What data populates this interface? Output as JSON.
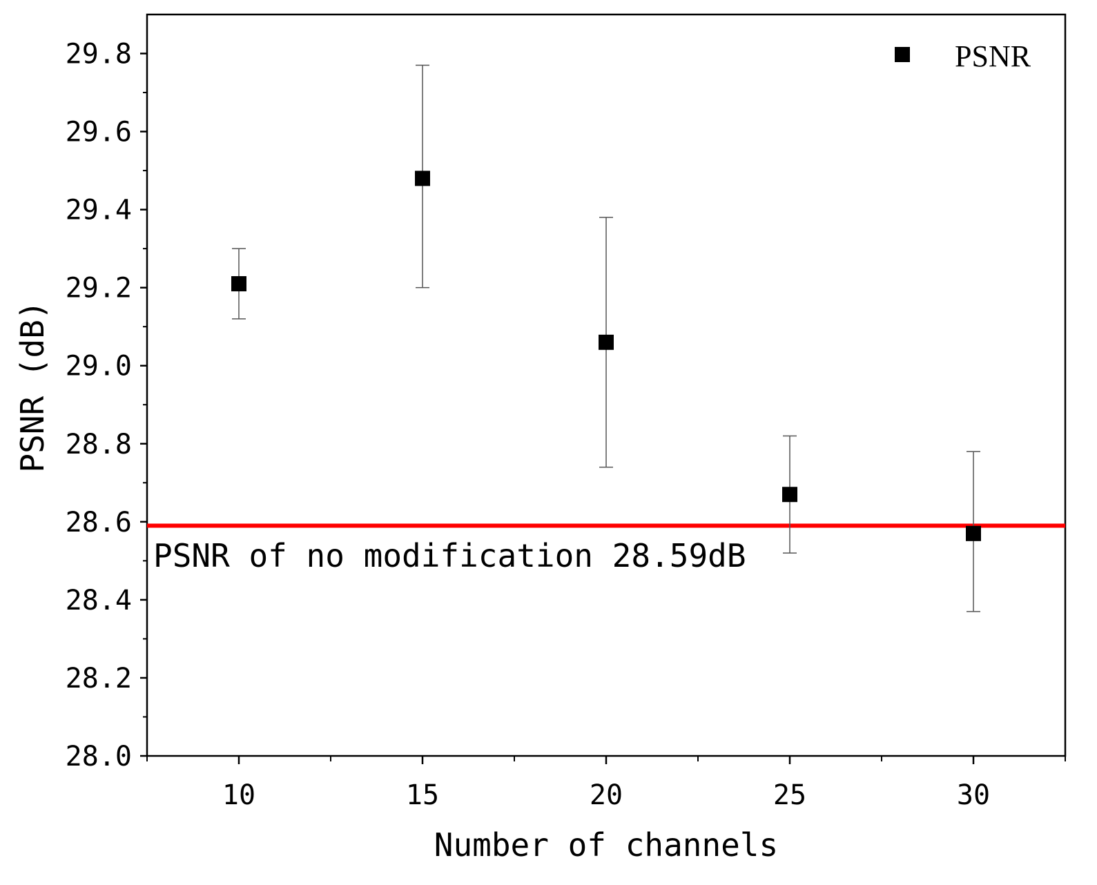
{
  "chart_data": {
    "type": "scatter",
    "xlabel": "Number of channels",
    "ylabel": "PSNR (dB)",
    "xlim": [
      7.5,
      32.5
    ],
    "ylim": [
      28.0,
      29.9
    ],
    "x_ticks": [
      10,
      15,
      20,
      25,
      30
    ],
    "x_tick_labels": [
      "10",
      "15",
      "20",
      "25",
      "30"
    ],
    "y_ticks": [
      28.0,
      28.2,
      28.4,
      28.6,
      28.8,
      29.0,
      29.2,
      29.4,
      29.6,
      29.8
    ],
    "y_tick_labels": [
      "28.0",
      "28.2",
      "28.4",
      "28.6",
      "28.8",
      "29.0",
      "29.2",
      "29.4",
      "29.6",
      "29.8"
    ],
    "grid": false,
    "legend_position": "top-right",
    "series": [
      {
        "name": "PSNR",
        "color": "#000000",
        "marker": "square",
        "x": [
          10,
          15,
          20,
          25,
          30
        ],
        "y": [
          29.21,
          29.48,
          29.06,
          28.67,
          28.57
        ],
        "y_upper": [
          29.3,
          29.77,
          29.38,
          28.82,
          28.78
        ],
        "y_lower": [
          29.12,
          29.2,
          28.74,
          28.52,
          28.37
        ]
      }
    ],
    "reference_line": {
      "y": 28.59,
      "color": "#ff0000",
      "label": "PSNR of no modification 28.59dB"
    }
  }
}
